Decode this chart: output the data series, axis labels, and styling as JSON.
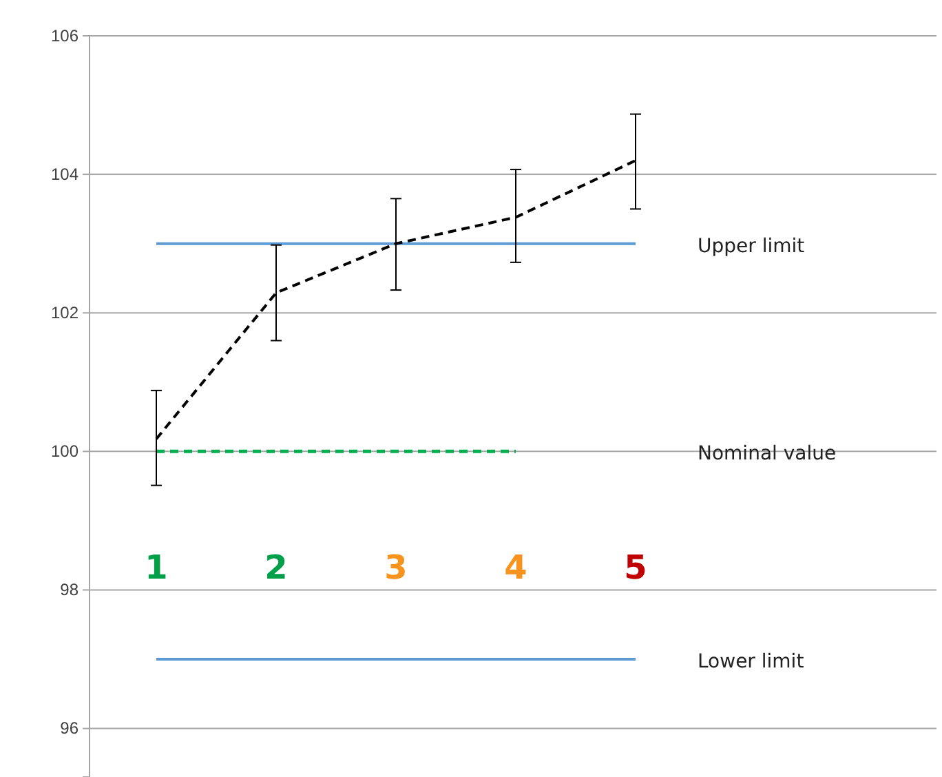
{
  "chart_data": {
    "type": "line",
    "categories": [
      null,
      null,
      null,
      null,
      null
    ],
    "ylim": [
      95.3,
      106
    ],
    "yticks": [
      96,
      98,
      100,
      102,
      104,
      106
    ],
    "grid": "y",
    "tick_labels": "y",
    "marker": "none",
    "series": [
      {
        "name": "Upper limit",
        "color": "#5b9bd5",
        "values": [
          103,
          103,
          103,
          103,
          103
        ],
        "line_style": "solid"
      },
      {
        "name": "Lower limit",
        "color": "#5b9bd5",
        "values": [
          97,
          97,
          97,
          97,
          97
        ],
        "line_style": "solid"
      },
      {
        "name": "Nominal value",
        "color": "#00b050",
        "values": [
          100,
          100,
          100,
          100,
          null
        ],
        "line_style": "dashed"
      },
      {
        "color": "#000000",
        "values": [
          100.18,
          102.29,
          103.0,
          103.38,
          104.2
        ],
        "line_style": "dashed",
        "errors": [
          [
            99.51,
            100.88
          ],
          [
            101.6,
            102.98
          ],
          [
            102.33,
            103.65
          ],
          [
            102.73,
            104.07
          ],
          [
            103.5,
            104.87
          ]
        ]
      }
    ],
    "annotations": [
      "1",
      "2",
      "3",
      "4",
      "5"
    ]
  }
}
